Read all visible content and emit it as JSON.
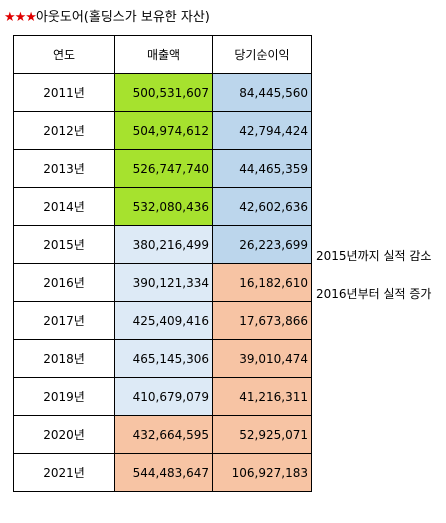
{
  "title": {
    "stars": "★★★",
    "text": "아웃도어(홀딩스가 보유한 자산)"
  },
  "table": {
    "headers": [
      "연도",
      "매출액",
      "당기순이익"
    ],
    "rows": [
      {
        "year": "2011년",
        "sales": "500,531,607",
        "profit": "84,445,560",
        "sales_color": "#a6e22e",
        "profit_color": "#bcd6ec"
      },
      {
        "year": "2012년",
        "sales": "504,974,612",
        "profit": "42,794,424",
        "sales_color": "#a6e22e",
        "profit_color": "#bcd6ec"
      },
      {
        "year": "2013년",
        "sales": "526,747,740",
        "profit": "44,465,359",
        "sales_color": "#a6e22e",
        "profit_color": "#bcd6ec"
      },
      {
        "year": "2014년",
        "sales": "532,080,436",
        "profit": "42,602,636",
        "sales_color": "#a6e22e",
        "profit_color": "#bcd6ec"
      },
      {
        "year": "2015년",
        "sales": "380,216,499",
        "profit": "26,223,699",
        "sales_color": "#ddeaf6",
        "profit_color": "#bcd6ec"
      },
      {
        "year": "2016년",
        "sales": "390,121,334",
        "profit": "16,182,610",
        "sales_color": "#ddeaf6",
        "profit_color": "#f7c4a4"
      },
      {
        "year": "2017년",
        "sales": "425,409,416",
        "profit": "17,673,866",
        "sales_color": "#ddeaf6",
        "profit_color": "#f7c4a4"
      },
      {
        "year": "2018년",
        "sales": "465,145,306",
        "profit": "39,010,474",
        "sales_color": "#ddeaf6",
        "profit_color": "#f7c4a4"
      },
      {
        "year": "2019년",
        "sales": "410,679,079",
        "profit": "41,216,311",
        "sales_color": "#ddeaf6",
        "profit_color": "#f7c4a4"
      },
      {
        "year": "2020년",
        "sales": "432,664,595",
        "profit": "52,925,071",
        "sales_color": "#f7c4a4",
        "profit_color": "#f7c4a4"
      },
      {
        "year": "2021년",
        "sales": "544,483,647",
        "profit": "106,927,183",
        "sales_color": "#f7c4a4",
        "profit_color": "#f7c4a4"
      }
    ]
  },
  "notes": {
    "note_2015": "2015년까지 실적 감소",
    "note_2016": "2016년부터 실적 증가"
  }
}
